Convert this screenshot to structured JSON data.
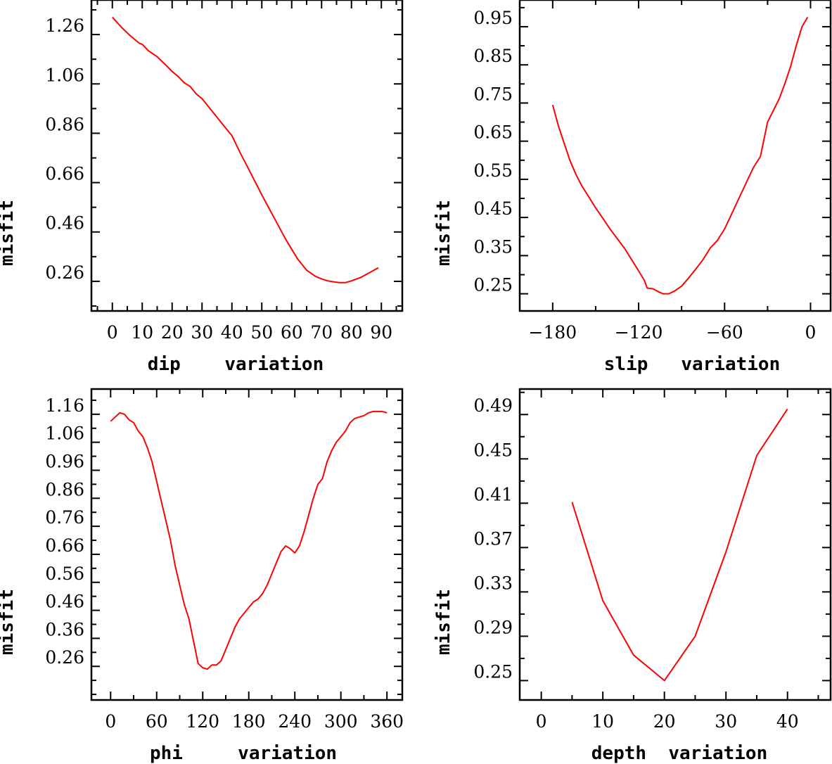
{
  "chart_data": [
    {
      "type": "line",
      "id": "dip",
      "xlabel": "dip    variation",
      "ylabel": "misfit",
      "xlim": [
        -7,
        97
      ],
      "ylim": [
        0.14,
        1.4
      ],
      "xticks": [
        0,
        10,
        20,
        30,
        40,
        50,
        60,
        70,
        80,
        90
      ],
      "xtick_labels": [
        "0",
        "10",
        "20",
        "30",
        "40",
        "50",
        "60",
        "70",
        "80",
        "90"
      ],
      "xminor": 5,
      "yticks": [
        0.26,
        0.46,
        0.66,
        0.86,
        1.06,
        1.26
      ],
      "ytick_labels": [
        "0.26",
        "0.46",
        "0.66",
        "0.86",
        "1.06",
        "1.26"
      ],
      "yminor": 0.1,
      "line_color": "#ff0000",
      "x": [
        0,
        3,
        6,
        9,
        10,
        12,
        15,
        18,
        20,
        22,
        24,
        26,
        28,
        30,
        33,
        35,
        37,
        40,
        43,
        46,
        50,
        54,
        58,
        62,
        65,
        68,
        70,
        72,
        74,
        76,
        78,
        80,
        83,
        86,
        89
      ],
      "y": [
        1.33,
        1.29,
        1.255,
        1.225,
        1.22,
        1.195,
        1.17,
        1.135,
        1.11,
        1.09,
        1.065,
        1.05,
        1.02,
        1.0,
        0.955,
        0.925,
        0.895,
        0.85,
        0.775,
        0.705,
        0.61,
        0.52,
        0.43,
        0.35,
        0.305,
        0.28,
        0.27,
        0.262,
        0.258,
        0.255,
        0.255,
        0.262,
        0.275,
        0.295,
        0.315
      ]
    },
    {
      "type": "line",
      "id": "slip",
      "xlabel": "slip   variation",
      "ylabel": "misfit",
      "xlim": [
        -203,
        14
      ],
      "ylim": [
        0.205,
        1.02
      ],
      "xticks": [
        -180,
        -120,
        -60,
        0
      ],
      "xtick_labels": [
        "−180",
        "−120",
        "−60",
        "0"
      ],
      "xminor": 30,
      "yticks": [
        0.25,
        0.35,
        0.45,
        0.55,
        0.65,
        0.75,
        0.85,
        0.95
      ],
      "ytick_labels": [
        "0.25",
        "0.35",
        "0.45",
        "0.55",
        "0.65",
        "0.75",
        "0.85",
        "0.95"
      ],
      "yminor": 0.05,
      "line_color": "#ff0000",
      "x": [
        -180,
        -176,
        -172,
        -168,
        -164,
        -160,
        -155,
        -150,
        -145,
        -140,
        -135,
        -130,
        -125,
        -120,
        -116,
        -114,
        -110,
        -106,
        -103,
        -99,
        -95,
        -90,
        -85,
        -80,
        -75,
        -70,
        -65,
        -60,
        -55,
        -50,
        -45,
        -40,
        -35,
        -30,
        -26,
        -22,
        -18,
        -14,
        -10,
        -6,
        -2
      ],
      "y": [
        0.745,
        0.69,
        0.645,
        0.6,
        0.565,
        0.535,
        0.505,
        0.475,
        0.448,
        0.42,
        0.395,
        0.37,
        0.34,
        0.31,
        0.285,
        0.265,
        0.263,
        0.255,
        0.25,
        0.25,
        0.257,
        0.27,
        0.292,
        0.315,
        0.34,
        0.37,
        0.39,
        0.42,
        0.46,
        0.5,
        0.54,
        0.58,
        0.61,
        0.7,
        0.73,
        0.76,
        0.8,
        0.845,
        0.9,
        0.95,
        0.975
      ]
    },
    {
      "type": "line",
      "id": "phi",
      "xlabel": "phi     variation",
      "ylabel": "misfit",
      "xlim": [
        -25,
        380
      ],
      "ylim": [
        0.14,
        1.25
      ],
      "xticks": [
        0,
        60,
        120,
        180,
        240,
        300,
        360
      ],
      "xtick_labels": [
        "0",
        "60",
        "120",
        "180",
        "240",
        "300",
        "360"
      ],
      "xminor": 30,
      "yticks": [
        0.26,
        0.36,
        0.46,
        0.56,
        0.66,
        0.76,
        0.86,
        0.96,
        1.06,
        1.16
      ],
      "ytick_labels": [
        "0.26",
        "0.36",
        "0.46",
        "0.56",
        "0.66",
        "0.76",
        "0.86",
        "0.96",
        "1.06",
        "1.16"
      ],
      "yminor": 0.05,
      "line_color": "#ff0000",
      "x": [
        0,
        6,
        12,
        18,
        24,
        30,
        36,
        42,
        48,
        54,
        60,
        66,
        72,
        78,
        84,
        90,
        96,
        102,
        108,
        114,
        120,
        126,
        132,
        138,
        144,
        150,
        156,
        162,
        168,
        174,
        180,
        186,
        192,
        198,
        204,
        210,
        216,
        222,
        228,
        234,
        240,
        246,
        252,
        258,
        264,
        270,
        276,
        282,
        288,
        294,
        300,
        306,
        312,
        318,
        324,
        330,
        336,
        342,
        348,
        354,
        360
      ],
      "y": [
        1.135,
        1.15,
        1.165,
        1.16,
        1.14,
        1.13,
        1.1,
        1.08,
        1.04,
        0.99,
        0.92,
        0.85,
        0.78,
        0.71,
        0.62,
        0.55,
        0.48,
        0.43,
        0.35,
        0.27,
        0.255,
        0.25,
        0.265,
        0.265,
        0.28,
        0.32,
        0.36,
        0.4,
        0.43,
        0.45,
        0.47,
        0.49,
        0.5,
        0.52,
        0.55,
        0.59,
        0.63,
        0.67,
        0.69,
        0.68,
        0.665,
        0.69,
        0.74,
        0.8,
        0.86,
        0.91,
        0.93,
        0.99,
        1.03,
        1.06,
        1.08,
        1.1,
        1.13,
        1.145,
        1.15,
        1.155,
        1.165,
        1.17,
        1.17,
        1.17,
        1.165
      ]
    },
    {
      "type": "line",
      "id": "depth",
      "xlabel": "depth  variation",
      "ylabel": "misfit",
      "xlim": [
        -3.5,
        47
      ],
      "ylim": [
        0.2325,
        0.513
      ],
      "xticks": [
        0,
        10,
        20,
        30,
        40
      ],
      "xtick_labels": [
        "0",
        "10",
        "20",
        "30",
        "40"
      ],
      "xminor": 5,
      "yticks": [
        0.25,
        0.29,
        0.33,
        0.37,
        0.41,
        0.45,
        0.49
      ],
      "ytick_labels": [
        "0.25",
        "0.29",
        "0.33",
        "0.37",
        "0.41",
        "0.45",
        "0.49"
      ],
      "yminor": 0.02,
      "line_color": "#ff0000",
      "x": [
        5,
        10,
        15,
        20,
        25,
        30,
        35,
        40
      ],
      "y": [
        0.411,
        0.322,
        0.273,
        0.25,
        0.29,
        0.366,
        0.453,
        0.495
      ]
    }
  ]
}
